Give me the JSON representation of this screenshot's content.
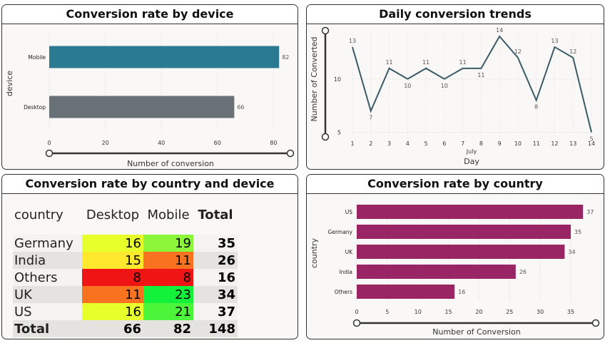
{
  "device_chart": {
    "title": "Conversion rate by device",
    "xlabel": "Number of conversion",
    "ylabel": "device",
    "color_mobile": "#2a7a91",
    "color_desktop": "#687176"
  },
  "trend_chart": {
    "title": "Daily conversion trends",
    "xlabel": "Day",
    "ylabel": "Number of Converted",
    "month_label": "July",
    "color": "#3b5a67"
  },
  "table": {
    "title": "Conversion rate by country and device",
    "headers": [
      "country",
      "Desktop",
      "Mobile",
      "Total"
    ],
    "rows": [
      {
        "country": "Germany",
        "desktop": "16",
        "mobile": "19",
        "total": "35",
        "desktop_color": "#e7ff2b",
        "mobile_color": "#8cf73a"
      },
      {
        "country": "India",
        "desktop": "15",
        "mobile": "11",
        "total": "26",
        "desktop_color": "#ffe82e",
        "mobile_color": "#f8721f"
      },
      {
        "country": "Others",
        "desktop": "8",
        "mobile": "8",
        "total": "16",
        "desktop_color": "#f01515",
        "mobile_color": "#f01515"
      },
      {
        "country": "UK",
        "desktop": "11",
        "mobile": "23",
        "total": "34",
        "desktop_color": "#f8721f",
        "mobile_color": "#12f23a"
      },
      {
        "country": "US",
        "desktop": "16",
        "mobile": "21",
        "total": "37",
        "desktop_color": "#e7ff2b",
        "mobile_color": "#4cf43a"
      }
    ],
    "totals": {
      "label": "Total",
      "desktop": "66",
      "mobile": "82",
      "total": "148"
    }
  },
  "country_chart": {
    "title": "Conversion rate by country",
    "xlabel": "Number of Conversion",
    "ylabel": "country",
    "color": "#9a2565"
  },
  "chart_data": [
    {
      "type": "bar",
      "orientation": "horizontal",
      "title": "Conversion rate by device",
      "categories": [
        "Mobile",
        "Desktop"
      ],
      "values": [
        82,
        66
      ],
      "xlabel": "Number of conversion",
      "ylabel": "device",
      "xlim": [
        0,
        85
      ],
      "xticks": [
        0,
        20,
        40,
        60,
        80
      ]
    },
    {
      "type": "line",
      "title": "Daily conversion trends",
      "x": [
        1,
        2,
        3,
        4,
        5,
        6,
        7,
        8,
        9,
        10,
        11,
        12,
        13,
        14
      ],
      "y": [
        13,
        7,
        11,
        10,
        11,
        10,
        11,
        11,
        14,
        12,
        8,
        13,
        12,
        5
      ],
      "xlabel": "Day",
      "ylabel": "Number of Converted",
      "ylim": [
        4.7,
        14.4
      ],
      "yticks": [
        5,
        10
      ]
    },
    {
      "type": "table",
      "title": "Conversion rate by country and device",
      "columns": [
        "country",
        "Desktop",
        "Mobile",
        "Total"
      ],
      "rows": [
        [
          "Germany",
          16,
          19,
          35
        ],
        [
          "India",
          15,
          11,
          26
        ],
        [
          "Others",
          8,
          8,
          16
        ],
        [
          "UK",
          11,
          23,
          34
        ],
        [
          "US",
          16,
          21,
          37
        ],
        [
          "Total",
          66,
          82,
          148
        ]
      ]
    },
    {
      "type": "bar",
      "orientation": "horizontal",
      "title": "Conversion rate by country",
      "categories": [
        "US",
        "Germany",
        "UK",
        "India",
        "Others"
      ],
      "values": [
        37,
        35,
        34,
        26,
        16
      ],
      "xlabel": "Number of Conversion",
      "ylabel": "country",
      "xlim": [
        0,
        38.5
      ],
      "xticks": [
        0,
        5,
        10,
        15,
        20,
        25,
        30,
        35
      ]
    }
  ]
}
